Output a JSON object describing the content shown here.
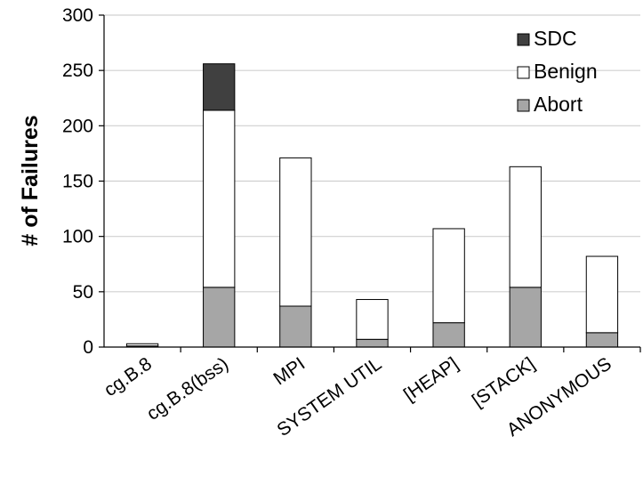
{
  "chart_data": {
    "type": "bar",
    "stacked": true,
    "title": "",
    "xlabel": "",
    "ylabel": "# of Failures",
    "ylim": [
      0,
      300
    ],
    "yticks": [
      0,
      50,
      100,
      150,
      200,
      250,
      300
    ],
    "grid": true,
    "legend_position": "top-right",
    "categories": [
      "cg.B.8",
      "cg.B.8(bss)",
      "MPI",
      "SYSTEM UTIL",
      "[HEAP]",
      "[STACK]",
      "ANONYMOUS"
    ],
    "series": [
      {
        "name": "Abort",
        "color": "#a6a6a6",
        "values": [
          1,
          54,
          37,
          7,
          22,
          54,
          13
        ]
      },
      {
        "name": "Benign",
        "color": "#ffffff",
        "values": [
          2,
          160,
          134,
          36,
          85,
          109,
          69
        ]
      },
      {
        "name": "SDC",
        "color": "#404040",
        "values": [
          0,
          42,
          0,
          0,
          0,
          0,
          0
        ]
      }
    ],
    "legend_order": [
      "SDC",
      "Benign",
      "Abort"
    ]
  }
}
